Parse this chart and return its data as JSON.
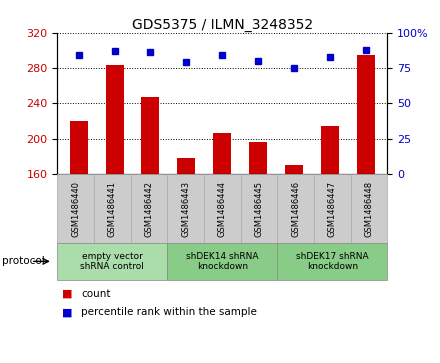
{
  "title": "GDS5375 / ILMN_3248352",
  "samples": [
    "GSM1486440",
    "GSM1486441",
    "GSM1486442",
    "GSM1486443",
    "GSM1486444",
    "GSM1486445",
    "GSM1486446",
    "GSM1486447",
    "GSM1486448"
  ],
  "counts": [
    220,
    283,
    247,
    178,
    207,
    196,
    170,
    215,
    295
  ],
  "percentiles": [
    84,
    87,
    86,
    79,
    84,
    80,
    75,
    83,
    88
  ],
  "ylim_left": [
    160,
    320
  ],
  "ylim_right": [
    0,
    100
  ],
  "yticks_left": [
    160,
    200,
    240,
    280,
    320
  ],
  "yticks_right": [
    0,
    25,
    50,
    75,
    100
  ],
  "bar_color": "#cc0000",
  "dot_color": "#0000cc",
  "bar_width": 0.5,
  "group_boundaries": [
    {
      "start": 0,
      "end": 2,
      "label": "empty vector\nshRNA control",
      "color": "#aaddaa"
    },
    {
      "start": 3,
      "end": 5,
      "label": "shDEK14 shRNA\nknockdown",
      "color": "#88cc88"
    },
    {
      "start": 6,
      "end": 8,
      "label": "shDEK17 shRNA\nknockdown",
      "color": "#88cc88"
    }
  ],
  "protocol_label": "protocol",
  "legend_count": "count",
  "legend_percentile": "percentile rank within the sample",
  "background_plot": "#ffffff",
  "background_sample_box": "#cccccc",
  "sample_box_edge": "#aaaaaa"
}
